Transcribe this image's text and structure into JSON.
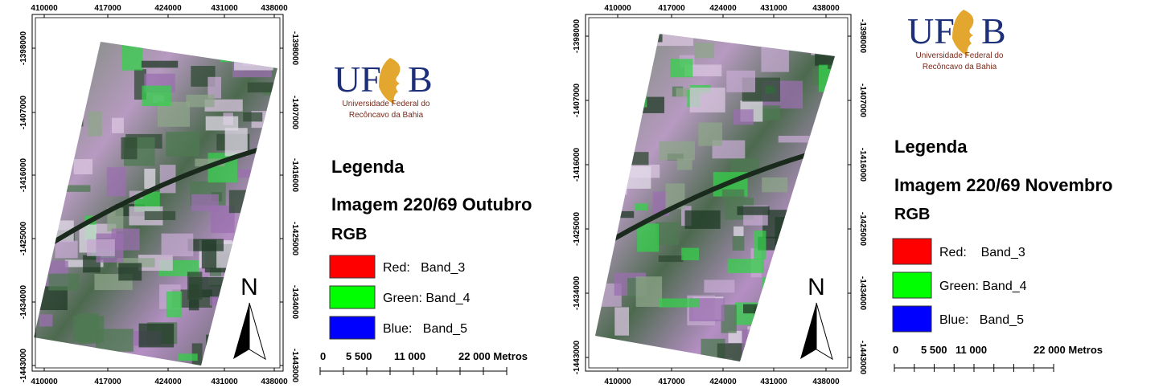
{
  "maps": [
    {
      "x_ticks": [
        410000,
        417000,
        424000,
        431000,
        438000
      ],
      "y_ticks": [
        -1398000,
        -1407000,
        -1416000,
        -1425000,
        -1434000,
        -1443000
      ],
      "logo": {
        "left": "UF",
        "right": "B",
        "line1": "Universidade Federal do",
        "line2": "Recôncavo da Bahia"
      },
      "legend": {
        "title": "Legenda",
        "image": "Imagem 220/69 Outubro",
        "rgb": "RGB",
        "items": [
          {
            "label": "Red:   Band_3",
            "color": "#ff0000"
          },
          {
            "label": "Green: Band_4",
            "color": "#00ff00"
          },
          {
            "label": "Blue:   Band_5",
            "color": "#0000ff"
          }
        ]
      },
      "scale": [
        "0",
        "5 500",
        "11 000",
        "22 000 Metros"
      ],
      "north": "N"
    },
    {
      "x_ticks": [
        410000,
        417000,
        424000,
        431000,
        438000
      ],
      "y_ticks": [
        -1398000,
        -1407000,
        -1416000,
        -1425000,
        -1434000,
        -1443000
      ],
      "logo": {
        "left": "UF",
        "right": "B",
        "line1": "Universidade Federal do",
        "line2": "Recôncavo da Bahia"
      },
      "legend": {
        "title": "Legenda",
        "image": "Imagem 220/69 Novembro",
        "rgb": "RGB",
        "items": [
          {
            "label": "Red:    Band_3",
            "color": "#ff0000"
          },
          {
            "label": "Green: Band_4",
            "color": "#00ff00"
          },
          {
            "label": "Blue:   Band_5",
            "color": "#0000ff"
          }
        ]
      },
      "scale": [
        "0",
        "5 500",
        "11 000",
        "22 000 Metros"
      ],
      "north": "N"
    }
  ]
}
